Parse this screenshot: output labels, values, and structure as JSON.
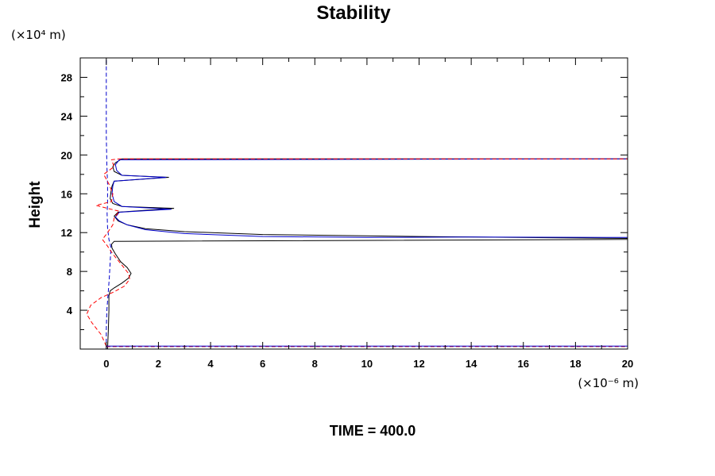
{
  "chart_data": {
    "type": "line",
    "title": "Stability",
    "ylabel": "Height",
    "y_unit": "(×10⁴ m)",
    "x_unit": "(×10⁻⁶ m)",
    "footer": "TIME = 400.0",
    "xlim": [
      -1,
      20
    ],
    "ylim": [
      0,
      30
    ],
    "x_ticks": [
      0,
      2,
      4,
      6,
      8,
      10,
      12,
      14,
      16,
      18,
      20
    ],
    "y_ticks": [
      4,
      8,
      12,
      16,
      20,
      24,
      28
    ],
    "grid": false,
    "colors": {
      "black": "#000000",
      "blue": "#0000cc",
      "red": "#ff0000"
    },
    "series": [
      {
        "style": "solid",
        "color": "black",
        "points": [
          [
            0.05,
            0
          ],
          [
            0.08,
            2
          ],
          [
            0.1,
            4
          ],
          [
            0.1,
            5.5
          ],
          [
            0.15,
            6
          ],
          [
            0.3,
            6.3
          ],
          [
            0.6,
            6.8
          ],
          [
            0.85,
            7.3
          ],
          [
            0.95,
            7.8
          ],
          [
            0.8,
            8.4
          ],
          [
            0.55,
            9
          ],
          [
            0.35,
            9.8
          ],
          [
            0.22,
            10.4
          ],
          [
            0.2,
            10.8
          ],
          [
            0.3,
            11.1
          ],
          [
            20,
            11.3
          ],
          [
            20,
            11.4
          ],
          [
            12,
            11.6
          ],
          [
            6,
            11.8
          ],
          [
            3,
            12.1
          ],
          [
            1.5,
            12.4
          ],
          [
            0.8,
            12.8
          ],
          [
            0.45,
            13.2
          ],
          [
            0.3,
            13.7
          ],
          [
            0.45,
            14.1
          ],
          [
            2.6,
            14.5
          ],
          [
            0.6,
            14.7
          ],
          [
            0.25,
            15
          ],
          [
            0.15,
            15.5
          ],
          [
            0.18,
            16.2
          ],
          [
            0.22,
            16.8
          ],
          [
            0.3,
            17.3
          ],
          [
            2.4,
            17.7
          ],
          [
            0.6,
            17.9
          ],
          [
            0.3,
            18.3
          ],
          [
            0.25,
            18.8
          ],
          [
            0.35,
            19.2
          ],
          [
            0.6,
            19.6
          ],
          [
            20,
            19.6
          ]
        ]
      },
      {
        "style": "solid",
        "color": "blue",
        "points": [
          [
            20,
            11.5
          ],
          [
            14,
            11.55
          ],
          [
            10,
            11.5
          ],
          [
            6,
            11.6
          ],
          [
            3,
            11.9
          ],
          [
            1.5,
            12.3
          ],
          [
            0.8,
            12.8
          ],
          [
            0.5,
            13.2
          ],
          [
            0.35,
            13.6
          ],
          [
            0.5,
            14.1
          ],
          [
            2.5,
            14.4
          ],
          [
            0.6,
            14.7
          ],
          [
            0.3,
            15.2
          ],
          [
            0.22,
            16
          ],
          [
            0.25,
            16.8
          ],
          [
            0.3,
            17.3
          ],
          [
            2.3,
            17.7
          ],
          [
            0.6,
            17.9
          ],
          [
            0.4,
            18.4
          ],
          [
            0.35,
            19
          ],
          [
            0.5,
            19.5
          ],
          [
            20,
            19.6
          ]
        ]
      },
      {
        "style": "dashed",
        "color": "blue",
        "points": [
          [
            0,
            0
          ],
          [
            0,
            2
          ],
          [
            0.02,
            4
          ],
          [
            0.08,
            6
          ],
          [
            0.12,
            7.5
          ],
          [
            0.15,
            9
          ],
          [
            0.18,
            10.5
          ],
          [
            0.1,
            11.3
          ],
          [
            0.05,
            12.5
          ],
          [
            0.03,
            14
          ],
          [
            0.05,
            15
          ],
          [
            0.05,
            17
          ],
          [
            0.02,
            19
          ],
          [
            0,
            22
          ],
          [
            0,
            30
          ]
        ]
      },
      {
        "style": "dashed",
        "color": "red",
        "points": [
          [
            0,
            0.3
          ],
          [
            -0.2,
            1.5
          ],
          [
            -0.55,
            2.7
          ],
          [
            -0.75,
            3.6
          ],
          [
            -0.6,
            4.5
          ],
          [
            -0.2,
            5.3
          ],
          [
            0.3,
            5.9
          ],
          [
            0.7,
            6.5
          ],
          [
            0.9,
            7.2
          ],
          [
            0.85,
            7.8
          ],
          [
            0.55,
            8.8
          ],
          [
            0.25,
            9.8
          ],
          [
            0.05,
            10.6
          ],
          [
            -0.15,
            11.3
          ],
          [
            0.05,
            12
          ],
          [
            0.25,
            12.8
          ],
          [
            0.3,
            13.5
          ],
          [
            0.5,
            14.2
          ],
          [
            0.05,
            14.5
          ],
          [
            -0.4,
            14.8
          ],
          [
            0.2,
            15.2
          ],
          [
            0.25,
            16
          ],
          [
            0.1,
            17
          ],
          [
            -0.1,
            18
          ],
          [
            0.3,
            18.8
          ],
          [
            0.2,
            19.5
          ],
          [
            0.5,
            19.6
          ],
          [
            20,
            19.6
          ]
        ]
      },
      {
        "style": "dashed",
        "color": "red",
        "points": [
          [
            0,
            0.25
          ],
          [
            20,
            0.25
          ]
        ]
      },
      {
        "style": "solid",
        "color": "blue",
        "points": [
          [
            0,
            0.3
          ],
          [
            20,
            0.3
          ]
        ]
      }
    ]
  }
}
